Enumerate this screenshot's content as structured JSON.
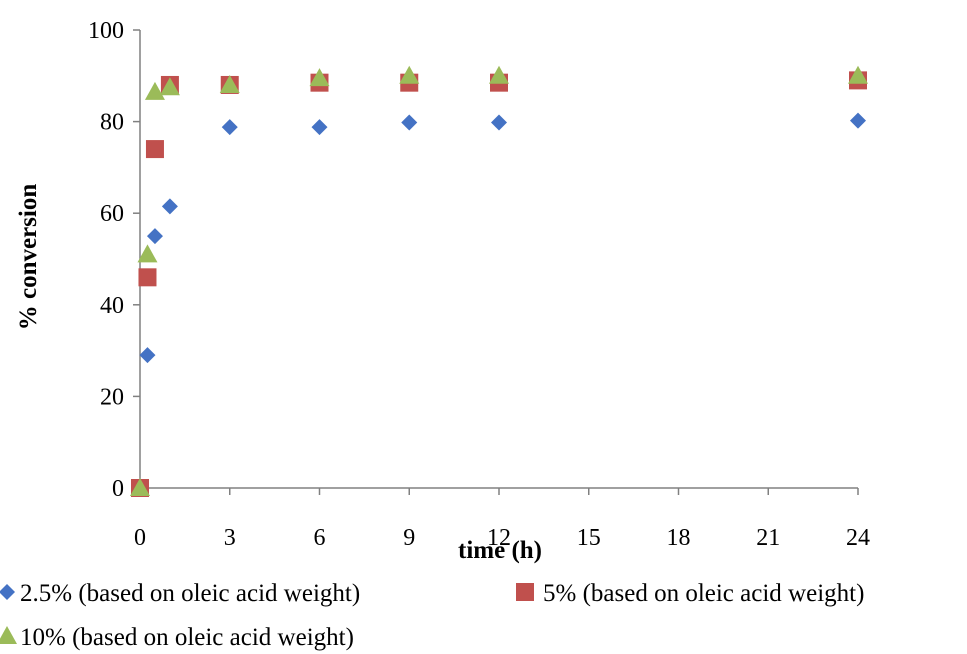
{
  "chart_data": {
    "type": "scatter",
    "xlabel": "time (h)",
    "ylabel": "% conversion",
    "xlim": [
      0,
      24
    ],
    "ylim": [
      0,
      100
    ],
    "xticks": [
      0,
      3,
      6,
      9,
      12,
      15,
      18,
      21,
      24
    ],
    "yticks": [
      0,
      20,
      40,
      60,
      80,
      100
    ],
    "grid": false,
    "legend_position": "bottom",
    "series": [
      {
        "name": "2.5% (based on oleic acid weight)",
        "marker": "diamond",
        "color": "#4472C4",
        "points": [
          [
            0.25,
            29
          ],
          [
            0.5,
            55
          ],
          [
            1,
            61.5
          ],
          [
            3,
            78.8
          ],
          [
            6,
            78.8
          ],
          [
            9,
            79.8
          ],
          [
            12,
            79.8
          ],
          [
            24,
            80.2
          ]
        ]
      },
      {
        "name": "5% (based on oleic acid weight)",
        "marker": "square",
        "color": "#C0504D",
        "points": [
          [
            0,
            0
          ],
          [
            0.25,
            46
          ],
          [
            0.5,
            74
          ],
          [
            1,
            88
          ],
          [
            3,
            88
          ],
          [
            6,
            88.5
          ],
          [
            9,
            88.5
          ],
          [
            12,
            88.5
          ],
          [
            24,
            89
          ]
        ]
      },
      {
        "name": "10% (based on oleic acid weight)",
        "marker": "triangle",
        "color": "#9BBB59",
        "points": [
          [
            0,
            0
          ],
          [
            0.25,
            51
          ],
          [
            0.5,
            86.5
          ],
          [
            1,
            87.5
          ],
          [
            3,
            88
          ],
          [
            6,
            89.5
          ],
          [
            9,
            90
          ],
          [
            12,
            90
          ],
          [
            24,
            90
          ]
        ]
      }
    ]
  }
}
